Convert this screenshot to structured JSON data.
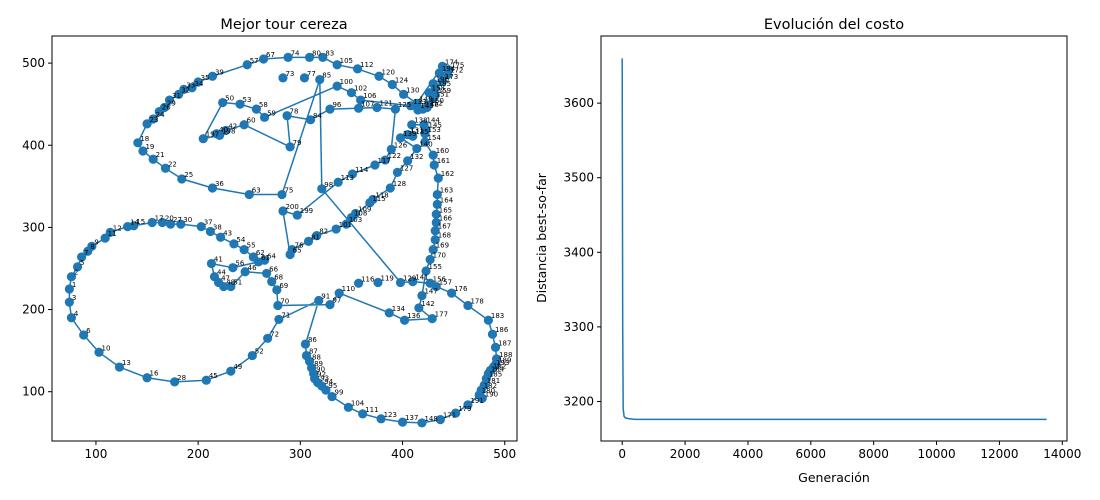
{
  "chart_data": [
    {
      "type": "scatter",
      "title": "Mejor tour cereza",
      "xlabel": "",
      "ylabel": "",
      "xlim": [
        57,
        512
      ],
      "ylim": [
        40,
        533
      ],
      "xticks": [
        100,
        200,
        300,
        400,
        500
      ],
      "yticks": [
        100,
        200,
        300,
        400,
        500
      ],
      "color": "#1f77b4",
      "tour_closed": true,
      "points": [
        [
          74,
          225,
          "1"
        ],
        [
          76,
          240,
          "2"
        ],
        [
          74,
          209,
          "3"
        ],
        [
          76,
          190,
          "4"
        ],
        [
          82,
          252,
          "5"
        ],
        [
          88,
          169,
          "6"
        ],
        [
          86,
          264,
          "7"
        ],
        [
          92,
          271,
          "8"
        ],
        [
          96,
          277,
          "9"
        ],
        [
          103,
          148,
          "10"
        ],
        [
          109,
          287,
          "11"
        ],
        [
          114,
          294,
          "12"
        ],
        [
          123,
          130,
          "13"
        ],
        [
          131,
          301,
          "14"
        ],
        [
          137,
          302,
          "15"
        ],
        [
          150,
          117,
          "16"
        ],
        [
          155,
          306,
          "17"
        ],
        [
          141,
          403,
          "18"
        ],
        [
          146,
          393,
          "19"
        ],
        [
          165,
          306,
          "20"
        ],
        [
          156,
          383,
          "21"
        ],
        [
          168,
          372,
          "22"
        ],
        [
          150,
          426,
          "23"
        ],
        [
          156,
          432,
          "24"
        ],
        [
          184,
          359,
          "25"
        ],
        [
          162,
          441,
          "26"
        ],
        [
          173,
          304,
          "27"
        ],
        [
          177,
          112,
          "28"
        ],
        [
          167,
          446,
          "29"
        ],
        [
          183,
          304,
          "30"
        ],
        [
          172,
          455,
          "31"
        ],
        [
          181,
          462,
          "32"
        ],
        [
          186,
          468,
          "33"
        ],
        [
          194,
          470,
          "34"
        ],
        [
          200,
          477,
          "35"
        ],
        [
          214,
          348,
          "36"
        ],
        [
          203,
          301,
          "37"
        ],
        [
          212,
          295,
          "38"
        ],
        [
          214,
          484,
          "39"
        ],
        [
          218,
          414,
          "40"
        ],
        [
          213,
          256,
          "41"
        ],
        [
          227,
          418,
          "42"
        ],
        [
          222,
          288,
          "43"
        ],
        [
          216,
          240,
          "44"
        ],
        [
          208,
          114,
          "45"
        ],
        [
          246,
          246,
          "46"
        ],
        [
          220,
          233,
          "47"
        ],
        [
          225,
          228,
          "48"
        ],
        [
          232,
          125,
          "49"
        ],
        [
          224,
          452,
          "50"
        ],
        [
          232,
          228,
          "51"
        ],
        [
          253,
          144,
          "52"
        ],
        [
          241,
          450,
          "53"
        ],
        [
          235,
          280,
          "54"
        ],
        [
          245,
          273,
          "55"
        ],
        [
          234,
          251,
          "56"
        ],
        [
          248,
          498,
          "57"
        ],
        [
          257,
          444,
          "58"
        ],
        [
          265,
          434,
          "59"
        ],
        [
          245,
          425,
          "60"
        ],
        [
          259,
          258,
          "61"
        ],
        [
          254,
          264,
          "62"
        ],
        [
          250,
          340,
          "63"
        ],
        [
          265,
          260,
          "64"
        ],
        [
          290,
          267,
          "65"
        ],
        [
          267,
          244,
          "66"
        ],
        [
          264,
          505,
          "67"
        ],
        [
          272,
          234,
          "68"
        ],
        [
          277,
          224,
          "69"
        ],
        [
          278,
          205,
          "70"
        ],
        [
          279,
          188,
          "71"
        ],
        [
          268,
          165,
          "72"
        ],
        [
          283,
          482,
          "73"
        ],
        [
          288,
          507,
          "74"
        ],
        [
          282,
          340,
          "75"
        ],
        [
          292,
          273,
          "76"
        ],
        [
          304,
          482,
          "77"
        ],
        [
          287,
          436,
          "78"
        ],
        [
          290,
          398,
          "79"
        ],
        [
          309,
          507,
          "80"
        ],
        [
          308,
          283,
          "81"
        ],
        [
          316,
          290,
          "82"
        ],
        [
          322,
          507,
          "83"
        ],
        [
          310,
          431,
          "84"
        ],
        [
          319,
          480,
          "85"
        ],
        [
          305,
          158,
          "86"
        ],
        [
          306,
          144,
          "87"
        ],
        [
          309,
          137,
          "88"
        ],
        [
          311,
          129,
          "89"
        ],
        [
          313,
          122,
          "90"
        ],
        [
          318,
          211,
          "91"
        ],
        [
          314,
          116,
          "92"
        ],
        [
          317,
          111,
          "93"
        ],
        [
          321,
          107,
          "94"
        ],
        [
          325,
          102,
          "95"
        ],
        [
          329,
          444,
          "96"
        ],
        [
          329,
          206,
          "97"
        ],
        [
          321,
          347,
          "98"
        ],
        [
          331,
          94,
          "99"
        ],
        [
          336,
          472,
          "100"
        ],
        [
          335,
          298,
          "101"
        ],
        [
          350,
          464,
          "102"
        ],
        [
          345,
          304,
          "103"
        ],
        [
          347,
          81,
          "104"
        ],
        [
          336,
          498,
          "105"
        ],
        [
          359,
          455,
          "106"
        ],
        [
          357,
          445,
          "107"
        ],
        [
          350,
          312,
          "108"
        ],
        [
          354,
          317,
          "109"
        ],
        [
          338,
          220,
          "110"
        ],
        [
          361,
          73,
          "111"
        ],
        [
          356,
          493,
          "112"
        ],
        [
          337,
          355,
          "113"
        ],
        [
          351,
          365,
          "114"
        ],
        [
          368,
          330,
          "115"
        ],
        [
          357,
          232,
          "116"
        ],
        [
          373,
          376,
          "117"
        ],
        [
          371,
          334,
          "118"
        ],
        [
          376,
          233,
          "119"
        ],
        [
          377,
          484,
          "120"
        ],
        [
          375,
          446,
          "121"
        ],
        [
          383,
          382,
          "122"
        ],
        [
          379,
          67,
          "123"
        ],
        [
          390,
          474,
          "124"
        ],
        [
          393,
          444,
          "125"
        ],
        [
          389,
          395,
          "126"
        ],
        [
          395,
          367,
          "127"
        ],
        [
          388,
          348,
          "128"
        ],
        [
          398,
          233,
          "129"
        ],
        [
          401,
          462,
          "130"
        ],
        [
          405,
          413,
          "131"
        ],
        [
          405,
          381,
          "132"
        ],
        [
          408,
          448,
          "133"
        ],
        [
          387,
          196,
          "134"
        ],
        [
          410,
          411,
          "135"
        ],
        [
          402,
          187,
          "136"
        ],
        [
          400,
          63,
          "137"
        ],
        [
          409,
          425,
          "138"
        ],
        [
          398,
          409,
          "139"
        ],
        [
          414,
          396,
          "140"
        ],
        [
          410,
          234,
          "141"
        ],
        [
          416,
          202,
          "142"
        ],
        [
          415,
          443,
          "143"
        ],
        [
          421,
          425,
          "144"
        ],
        [
          423,
          419,
          "145"
        ],
        [
          420,
          444,
          "146"
        ],
        [
          419,
          217,
          "147"
        ],
        [
          419,
          62,
          "148"
        ],
        [
          414,
          451,
          "149"
        ],
        [
          425,
          449,
          "150"
        ],
        [
          430,
          457,
          "151"
        ],
        [
          424,
          446,
          "152"
        ],
        [
          422,
          414,
          "153"
        ],
        [
          422,
          404,
          "154"
        ],
        [
          423,
          247,
          "155"
        ],
        [
          427,
          232,
          "156"
        ],
        [
          433,
          228,
          "157"
        ],
        [
          426,
          464,
          "158"
        ],
        [
          432,
          461,
          "159"
        ],
        [
          430,
          388,
          "160"
        ],
        [
          431,
          376,
          "161"
        ],
        [
          435,
          360,
          "162"
        ],
        [
          434,
          340,
          "163"
        ],
        [
          434,
          328,
          "164"
        ],
        [
          433,
          316,
          "165"
        ],
        [
          433,
          306,
          "166"
        ],
        [
          432,
          296,
          "167"
        ],
        [
          432,
          285,
          "168"
        ],
        [
          430,
          273,
          "169"
        ],
        [
          427,
          261,
          "170"
        ],
        [
          437,
          66,
          "171"
        ],
        [
          444,
          486,
          "172"
        ],
        [
          439,
          478,
          "173"
        ],
        [
          439,
          496,
          "174"
        ],
        [
          445,
          492,
          "175"
        ],
        [
          448,
          220,
          "176"
        ],
        [
          429,
          189,
          "177"
        ],
        [
          464,
          205,
          "178"
        ],
        [
          452,
          74,
          "179"
        ],
        [
          475,
          96,
          "180"
        ],
        [
          480,
          108,
          "181"
        ],
        [
          477,
          102,
          "182"
        ],
        [
          484,
          187,
          "183"
        ],
        [
          484,
          122,
          "184"
        ],
        [
          482,
          116,
          "185"
        ],
        [
          488,
          170,
          "186"
        ],
        [
          491,
          154,
          "187"
        ],
        [
          492,
          140,
          "188"
        ],
        [
          491,
          133,
          "189"
        ],
        [
          478,
          92,
          "190"
        ],
        [
          464,
          84,
          "191"
        ],
        [
          486,
          126,
          "192"
        ],
        [
          489,
          130,
          "193"
        ],
        [
          436,
          488,
          "194"
        ],
        [
          432,
          470,
          "195"
        ],
        [
          430,
          475,
          "196"
        ],
        [
          205,
          408,
          "197"
        ],
        [
          221,
          412,
          "198"
        ],
        [
          297,
          315,
          "199"
        ],
        [
          283,
          320,
          "200"
        ]
      ],
      "tour_order": [
        "1",
        "2",
        "5",
        "7",
        "8",
        "9",
        "11",
        "12",
        "14",
        "15",
        "17",
        "20",
        "27",
        "30",
        "37",
        "38",
        "43",
        "54",
        "55",
        "62",
        "64",
        "61",
        "56",
        "41",
        "44",
        "47",
        "48",
        "51",
        "46",
        "66",
        "68",
        "69",
        "70",
        "97",
        "110",
        "134",
        "136",
        "177",
        "142",
        "147",
        "155",
        "170",
        "169",
        "168",
        "167",
        "166",
        "165",
        "164",
        "163",
        "162",
        "161",
        "160",
        "154",
        "153",
        "145",
        "144",
        "138",
        "135",
        "131",
        "139",
        "140",
        "132",
        "127",
        "128",
        "118",
        "115",
        "108",
        "103",
        "101",
        "82",
        "81",
        "76",
        "65",
        "200",
        "199",
        "113",
        "114",
        "117",
        "122",
        "126",
        "125",
        "121",
        "107",
        "96",
        "84",
        "78",
        "79",
        "60",
        "42",
        "40",
        "198",
        "197",
        "50",
        "53",
        "58",
        "59",
        "100",
        "102",
        "106",
        "133",
        "143",
        "146",
        "152",
        "150",
        "151",
        "158",
        "159",
        "196",
        "195",
        "173",
        "194",
        "172",
        "175",
        "174",
        "149",
        "130",
        "124",
        "120",
        "112",
        "105",
        "83",
        "80",
        "74",
        "67",
        "57",
        "39",
        "35",
        "34",
        "33",
        "32",
        "31",
        "29",
        "26",
        "24",
        "23",
        "18",
        "19",
        "21",
        "22",
        "25",
        "36",
        "63",
        "75",
        "85",
        "98",
        "129",
        "141",
        "156",
        "157",
        "176",
        "178",
        "183",
        "186",
        "187",
        "188",
        "189",
        "193",
        "192",
        "184",
        "185",
        "181",
        "182",
        "190",
        "180",
        "191",
        "179",
        "171",
        "148",
        "137",
        "123",
        "111",
        "104",
        "99",
        "95",
        "94",
        "93",
        "92",
        "90",
        "89",
        "88",
        "87",
        "86",
        "91",
        "71",
        "72",
        "52",
        "49",
        "45",
        "28",
        "16",
        "13",
        "10",
        "6",
        "4",
        "3"
      ]
    },
    {
      "type": "line",
      "title": "Evolución del costo",
      "xlabel": "Generación",
      "ylabel": "Distancia best-so-far",
      "xlim": [
        -675,
        14150
      ],
      "ylim": [
        3147,
        3690
      ],
      "xticks": [
        0,
        2000,
        4000,
        6000,
        8000,
        10000,
        12000,
        14000
      ],
      "yticks": [
        3200,
        3300,
        3400,
        3500,
        3600
      ],
      "color": "#1f77b4",
      "series": [
        {
          "x": [
            0,
            15,
            30,
            60,
            100,
            200,
            400,
            1000,
            2000,
            5000,
            10000,
            13500
          ],
          "y": [
            3660,
            3300,
            3190,
            3180,
            3178,
            3177,
            3176,
            3176,
            3176,
            3176,
            3176,
            3176
          ]
        }
      ]
    }
  ]
}
